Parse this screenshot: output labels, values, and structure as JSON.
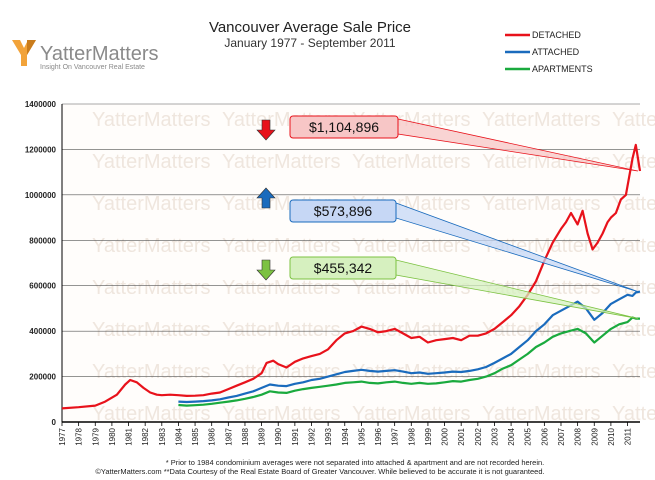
{
  "chart_data": {
    "type": "line",
    "title": "Vancouver Average Sale Price",
    "subtitle": "January 1977 - September 2011",
    "xlabel": "",
    "ylabel": "",
    "xlim": [
      1977,
      2011.75
    ],
    "ylim": [
      0,
      1400000
    ],
    "y_ticks": [
      0,
      200000,
      400000,
      600000,
      800000,
      1000000,
      1200000,
      1400000
    ],
    "y_tick_labels": [
      "0",
      "200000",
      "400000",
      "600000",
      "800000",
      "1000000",
      "1200000",
      "1400000"
    ],
    "x_tick_labels": [
      "1977",
      "1978",
      "1979",
      "1980",
      "1981",
      "1982",
      "1983",
      "1984",
      "1985",
      "1986",
      "1987",
      "1988",
      "1989",
      "1990",
      "1991",
      "1992",
      "1993",
      "1994",
      "1995",
      "1996",
      "1997",
      "1998",
      "1999",
      "2000",
      "2001",
      "2002",
      "2003",
      "2004",
      "2005",
      "2006",
      "2007",
      "2008",
      "2009",
      "2010",
      "2011"
    ],
    "grid": true,
    "legend_position": "top-right",
    "series": [
      {
        "name": "DETACHED",
        "color": "#e8121b",
        "x": [
          1977,
          1978,
          1979,
          1979.6,
          1980.3,
          1980.8,
          1981.1,
          1981.5,
          1981.9,
          1982.3,
          1982.7,
          1983,
          1983.5,
          1984,
          1984.5,
          1985,
          1985.5,
          1986,
          1986.5,
          1987,
          1987.5,
          1988,
          1988.5,
          1989,
          1989.3,
          1989.7,
          1990,
          1990.5,
          1991,
          1991.5,
          1992,
          1992.5,
          1993,
          1993.5,
          1994,
          1994.5,
          1995,
          1995.5,
          1996,
          1996.5,
          1997,
          1997.5,
          1998,
          1998.5,
          1999,
          1999.5,
          2000,
          2000.5,
          2001,
          2001.5,
          2002,
          2002.5,
          2003,
          2003.5,
          2004,
          2004.5,
          2005,
          2005.5,
          2006,
          2006.5,
          2007,
          2007.3,
          2007.6,
          2008,
          2008.3,
          2008.6,
          2008.9,
          2009.2,
          2009.5,
          2009.8,
          2010,
          2010.3,
          2010.6,
          2010.9,
          2011.1,
          2011.3,
          2011.5,
          2011.75
        ],
        "y": [
          60000,
          65000,
          72000,
          90000,
          120000,
          165000,
          185000,
          175000,
          150000,
          130000,
          120000,
          118000,
          120000,
          118000,
          115000,
          116000,
          118000,
          125000,
          130000,
          145000,
          160000,
          175000,
          190000,
          215000,
          260000,
          270000,
          255000,
          240000,
          265000,
          280000,
          290000,
          300000,
          320000,
          360000,
          390000,
          400000,
          420000,
          410000,
          395000,
          400000,
          410000,
          390000,
          370000,
          375000,
          350000,
          360000,
          365000,
          370000,
          360000,
          380000,
          380000,
          390000,
          410000,
          440000,
          470000,
          510000,
          560000,
          620000,
          710000,
          790000,
          850000,
          880000,
          920000,
          870000,
          930000,
          830000,
          760000,
          790000,
          830000,
          880000,
          900000,
          920000,
          980000,
          1000000,
          1080000,
          1160000,
          1220000,
          1104896
        ]
      },
      {
        "name": "ATTACHED",
        "color": "#1a6bbd",
        "x": [
          1984,
          1984.5,
          1985,
          1985.5,
          1986,
          1986.5,
          1987,
          1987.5,
          1988,
          1988.5,
          1989,
          1989.5,
          1990,
          1990.5,
          1991,
          1991.5,
          1992,
          1992.5,
          1993,
          1993.5,
          1994,
          1994.5,
          1995,
          1995.5,
          1996,
          1996.5,
          1997,
          1997.5,
          1998,
          1998.5,
          1999,
          1999.5,
          2000,
          2000.5,
          2001,
          2001.5,
          2002,
          2002.5,
          2003,
          2003.5,
          2004,
          2004.5,
          2005,
          2005.5,
          2006,
          2006.5,
          2007,
          2007.5,
          2008,
          2008.5,
          2009,
          2009.5,
          2010,
          2010.5,
          2011,
          2011.3,
          2011.5,
          2011.75
        ],
        "y": [
          90000,
          88000,
          90000,
          92000,
          95000,
          100000,
          108000,
          115000,
          125000,
          135000,
          150000,
          165000,
          160000,
          158000,
          168000,
          175000,
          185000,
          190000,
          200000,
          210000,
          220000,
          225000,
          230000,
          225000,
          222000,
          225000,
          228000,
          222000,
          215000,
          218000,
          212000,
          215000,
          218000,
          222000,
          220000,
          225000,
          232000,
          242000,
          260000,
          280000,
          300000,
          330000,
          360000,
          400000,
          430000,
          470000,
          490000,
          510000,
          530000,
          500000,
          450000,
          480000,
          520000,
          540000,
          560000,
          555000,
          570000,
          573896
        ]
      },
      {
        "name": "APARTMENTS",
        "color": "#1aaa3e",
        "x": [
          1984,
          1984.5,
          1985,
          1985.5,
          1986,
          1986.5,
          1987,
          1987.5,
          1988,
          1988.5,
          1989,
          1989.5,
          1990,
          1990.5,
          1991,
          1991.5,
          1992,
          1992.5,
          1993,
          1993.5,
          1994,
          1994.5,
          1995,
          1995.5,
          1996,
          1996.5,
          1997,
          1997.5,
          1998,
          1998.5,
          1999,
          1999.5,
          2000,
          2000.5,
          2001,
          2001.5,
          2002,
          2002.5,
          2003,
          2003.5,
          2004,
          2004.5,
          2005,
          2005.5,
          2006,
          2006.5,
          2007,
          2007.5,
          2008,
          2008.5,
          2009,
          2009.5,
          2010,
          2010.5,
          2011,
          2011.3,
          2011.5,
          2011.75
        ],
        "y": [
          75000,
          72000,
          74000,
          76000,
          80000,
          85000,
          90000,
          95000,
          102000,
          110000,
          120000,
          135000,
          130000,
          128000,
          138000,
          145000,
          150000,
          155000,
          160000,
          165000,
          172000,
          175000,
          178000,
          172000,
          170000,
          175000,
          178000,
          172000,
          168000,
          172000,
          168000,
          170000,
          175000,
          180000,
          178000,
          185000,
          190000,
          200000,
          215000,
          235000,
          250000,
          275000,
          300000,
          330000,
          350000,
          375000,
          390000,
          400000,
          410000,
          390000,
          350000,
          380000,
          410000,
          430000,
          440000,
          460000,
          455000,
          455342
        ]
      }
    ],
    "annotations": [
      {
        "text": "$1,104,896",
        "series": "DETACHED",
        "arrow": "down",
        "color": "#e8121b"
      },
      {
        "text": "$573,896",
        "series": "ATTACHED",
        "arrow": "up",
        "color": "#1a6bbd"
      },
      {
        "text": "$455,342",
        "series": "APARTMENTS",
        "arrow": "down",
        "color": "#7cc242"
      }
    ]
  },
  "logo": {
    "name": "YatterMatters",
    "tagline": "Insight On Vancouver Real Estate"
  },
  "footnotes": [
    "* Prior to 1984 condominium averages were not separated into attached & apartment and are not recorded herein.",
    "©YatterMatters.com **Data Courtesy of the Real Estate Board of Greater Vancouver.  While believed to be accurate it is not guaranteed."
  ]
}
